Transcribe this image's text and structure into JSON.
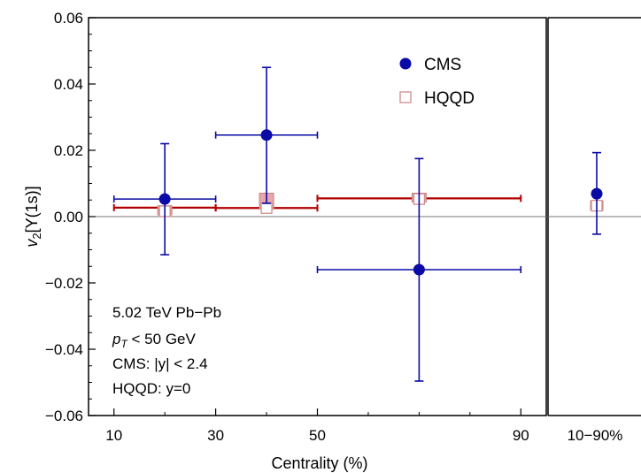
{
  "chart_data": {
    "type": "scatter",
    "xlabel": "Centrality (%)",
    "ylim": [
      -0.06,
      0.06
    ],
    "xlim": [
      5,
      95
    ],
    "y_ticks": [
      "0.06",
      "0.04",
      "0.02",
      "0.00",
      "-0.02",
      "-0.04",
      "-0.06"
    ],
    "y_tick_values": [
      0.06,
      0.04,
      0.02,
      0.0,
      -0.02,
      -0.04,
      -0.06
    ],
    "x_ticks": [
      "10",
      "30",
      "50",
      "90"
    ],
    "x_tick_values": [
      10,
      30,
      50,
      90
    ],
    "integrated_label": "10−90%",
    "legend_position": "top-right",
    "colors": {
      "cms": "#0a0aa6",
      "hqqd": "#b30000",
      "hqqd_fill": "#e9a7ab",
      "hqqd_edge": "#c98080"
    },
    "series": [
      {
        "name": "CMS",
        "marker": "circle",
        "points": [
          {
            "x": 20,
            "xerr": 10,
            "y": 0.0053,
            "yerr_up": 0.0167,
            "yerr_down": 0.0168
          },
          {
            "x": 40,
            "xerr": 10,
            "y": 0.0246,
            "yerr_up": 0.0204,
            "yerr_down": 0.0206
          },
          {
            "x": 70,
            "xerr": 20,
            "y": -0.016,
            "yerr_up": 0.0335,
            "yerr_down": 0.0336
          }
        ],
        "integrated": {
          "y": 0.0069,
          "yerr_up": 0.0124,
          "yerr_down": 0.0122
        }
      },
      {
        "name": "HQQD",
        "marker": "square",
        "points": [
          {
            "x": 20,
            "xerr": 10,
            "y": 0.0027,
            "band_low": 0.0008,
            "band_high": 0.003,
            "open_y": 0.0016
          },
          {
            "x": 40,
            "xerr": 10,
            "y": 0.0026,
            "band_low": 0.0026,
            "band_high": 0.0068,
            "open_y": 0.0026
          },
          {
            "x": 70,
            "xerr": 20,
            "y": 0.0055,
            "band_low": 0.0047,
            "band_high": 0.0068,
            "open_y": 0.0053
          }
        ],
        "integrated": {
          "y": 0.0033,
          "band_low": 0.0022,
          "band_high": 0.0044
        }
      }
    ],
    "annotations": [
      "5.02 TeV Pb−Pb",
      "p_T < 50 GeV",
      "CMS: |y| < 2.4",
      "HQQD: y=0"
    ]
  },
  "labels": {
    "ylabel_prefix": "v",
    "ylabel_sub": "2",
    "ylabel_rest": "[Υ(1s)]",
    "anno_energy": "5.02 TeV Pb−Pb",
    "anno_pt_p": "p",
    "anno_pt_sub": "T",
    "anno_pt_rest": " < 50 GeV",
    "anno_cms": "CMS: |y| < 2.4",
    "anno_hqqd": "HQQD: y=0"
  }
}
